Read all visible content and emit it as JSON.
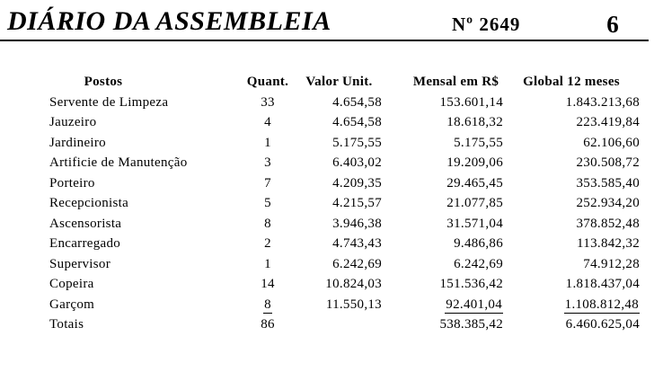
{
  "header": {
    "title": "DIÁRIO DA ASSEMBLEIA",
    "issue_label": "Nº  2649",
    "page_number": "6"
  },
  "table": {
    "columns": [
      "Postos",
      "Quant.",
      "Valor Unit.",
      "Mensal em R$",
      "Global 12 meses"
    ],
    "rows": [
      {
        "posto": "Servente de Limpeza",
        "quant": "33",
        "valor_unit": "4.654,58",
        "mensal": "153.601,14",
        "global": "1.843.213,68"
      },
      {
        "posto": "Jauzeiro",
        "quant": "4",
        "valor_unit": "4.654,58",
        "mensal": "18.618,32",
        "global": "223.419,84"
      },
      {
        "posto": "Jardineiro",
        "quant": "1",
        "valor_unit": "5.175,55",
        "mensal": "5.175,55",
        "global": "62.106,60"
      },
      {
        "posto": "Artificie de Manutenção",
        "quant": "3",
        "valor_unit": "6.403,02",
        "mensal": "19.209,06",
        "global": "230.508,72"
      },
      {
        "posto": "Porteiro",
        "quant": "7",
        "valor_unit": "4.209,35",
        "mensal": "29.465,45",
        "global": "353.585,40"
      },
      {
        "posto": "Recepcionista",
        "quant": "5",
        "valor_unit": "4.215,57",
        "mensal": "21.077,85",
        "global": "252.934,20"
      },
      {
        "posto": "Ascensorista",
        "quant": "8",
        "valor_unit": "3.946,38",
        "mensal": "31.571,04",
        "global": "378.852,48"
      },
      {
        "posto": "Encarregado",
        "quant": "2",
        "valor_unit": "4.743,43",
        "mensal": "9.486,86",
        "global": "113.842,32"
      },
      {
        "posto": "Supervisor",
        "quant": "1",
        "valor_unit": "6.242,69",
        "mensal": "6.242,69",
        "global": "74.912,28"
      },
      {
        "posto": "Copeira",
        "quant": "14",
        "valor_unit": "10.824,03",
        "mensal": "151.536,42",
        "global": "1.818.437,04"
      },
      {
        "posto": "Garçom",
        "quant": "8",
        "valor_unit": "11.550,13",
        "mensal": "92.401,04",
        "global": "1.108.812,48",
        "underline": [
          "quant",
          "mensal",
          "global"
        ]
      },
      {
        "posto": "Totais",
        "quant": "86",
        "valor_unit": "",
        "mensal": "538.385,42",
        "global": "6.460.625,04"
      }
    ]
  },
  "colors": {
    "ink": "#000000",
    "paper": "#ffffff"
  }
}
